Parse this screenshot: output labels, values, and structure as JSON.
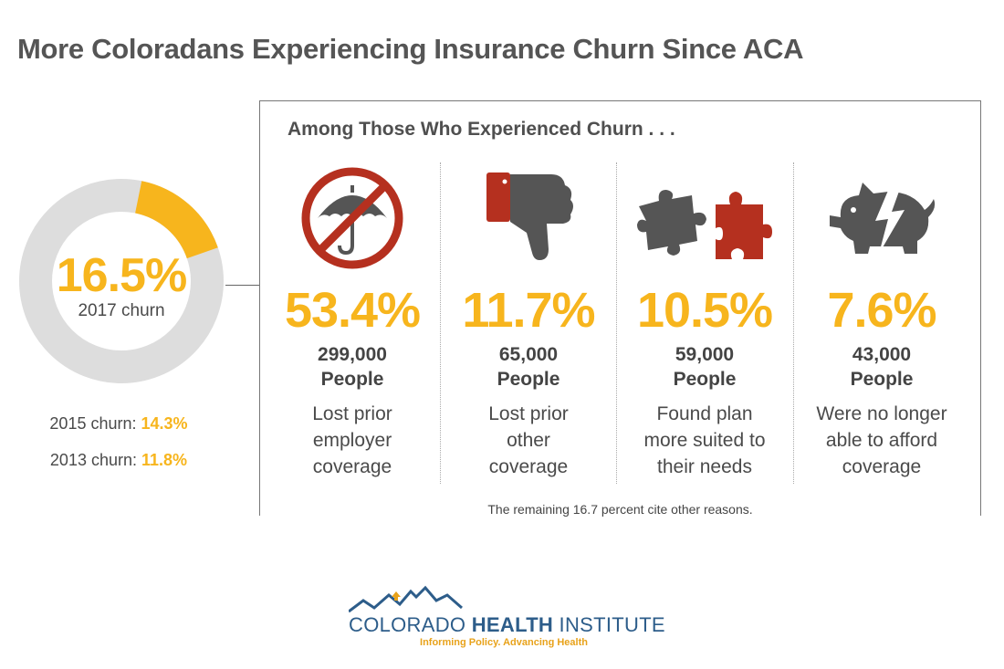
{
  "title": "More Coloradans Experiencing Insurance Churn Since ACA",
  "headline": {
    "value": "16.5%",
    "label": "2017 churn",
    "history": [
      {
        "label": "2015 churn:",
        "value": "14.3%"
      },
      {
        "label": "2013 churn:",
        "value": "11.8%"
      }
    ]
  },
  "panel": {
    "title": "Among Those Who Experienced Churn . . .",
    "footnote": "The remaining 16.7 percent cite other reasons."
  },
  "chart_data": [
    {
      "type": "pie",
      "categories": [
        "2017 churn",
        ""
      ],
      "values": [
        16.5,
        83.5
      ],
      "colors": [
        "#f7b51d",
        "#dddddd"
      ]
    },
    {
      "type": "table",
      "rows": [
        {
          "percent": "53.4%",
          "count": "299,000",
          "unit": "People",
          "reason": [
            "Lost prior",
            "employer",
            "coverage"
          ],
          "icon": "no-umbrella-icon"
        },
        {
          "percent": "11.7%",
          "count": "65,000",
          "unit": "People",
          "reason": [
            "Lost prior",
            "other",
            "coverage"
          ],
          "icon": "thumbs-down-icon"
        },
        {
          "percent": "10.5%",
          "count": "59,000",
          "unit": "People",
          "reason": [
            "Found plan",
            "more suited to",
            "their needs"
          ],
          "icon": "puzzle-pieces-icon"
        },
        {
          "percent": "7.6%",
          "count": "43,000",
          "unit": "People",
          "reason": [
            "Were no longer",
            "able to afford",
            "coverage"
          ],
          "icon": "broken-piggy-bank-icon"
        }
      ]
    }
  ],
  "colors": {
    "accent": "#f7b51d",
    "gray_ring": "#dddddd",
    "icon_gray": "#555555",
    "icon_red": "#b5301f",
    "logo_blue": "#2d5d8a",
    "logo_orange": "#e8a21a"
  },
  "logo": {
    "name_part1": "COLORADO ",
    "name_part2": "HEALTH",
    "name_part3": " INSTITUTE",
    "tagline": "Informing Policy. Advancing Health"
  }
}
